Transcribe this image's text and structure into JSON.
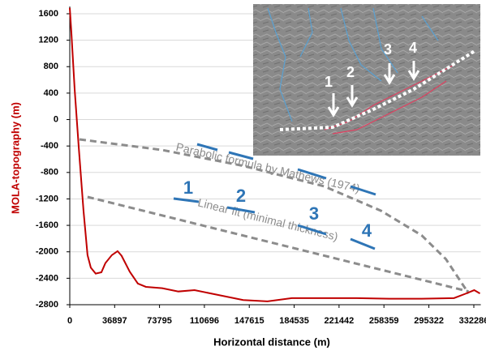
{
  "chart_data": {
    "type": "line",
    "y_label": "MOLA-topography (m)",
    "x_label": "Horizontal distance (m)",
    "x": [
      0,
      1300,
      4000,
      7300,
      11300,
      14600,
      17300,
      21300,
      26000,
      29300,
      34600,
      39300,
      42600,
      49300,
      56000,
      62600,
      76000,
      89300,
      102600,
      116000,
      142600,
      162600,
      182600,
      209300,
      236000,
      262600,
      289300,
      316000,
      326000,
      332600,
      337300
    ],
    "series": [
      {
        "color": "#c00000",
        "values": [
          1690,
          1320,
          460,
          -400,
          -1380,
          -2050,
          -2240,
          -2330,
          -2310,
          -2170,
          -2050,
          -1990,
          -2060,
          -2300,
          -2480,
          -2530,
          -2550,
          -2600,
          -2580,
          -2630,
          -2730,
          -2750,
          -2700,
          -2700,
          -2700,
          -2710,
          -2710,
          -2700,
          -2630,
          -2580,
          -2630
        ]
      }
    ],
    "overlays": [
      {
        "label": "Parabolic formula by Mathews (1974)",
        "color": "#8c8c8c",
        "x": [
          8000,
          76000,
          142600,
          209300,
          256000,
          289300,
          309300,
          322600,
          328000
        ],
        "values": [
          -300,
          -460,
          -700,
          -1010,
          -1380,
          -1750,
          -2110,
          -2480,
          -2630
        ]
      },
      {
        "label": "Linear fit (minimal thickness)",
        "color": "#8c8c8c",
        "x": [
          14600,
          328000
        ],
        "values": [
          -1170,
          -2600
        ]
      }
    ],
    "annotations": [
      "1",
      "2",
      "3",
      "4"
    ],
    "annotation_color": "#2e75b6",
    "xlim": [
      0,
      338000
    ],
    "ylim": [
      -2800,
      1710
    ],
    "xticks": [
      0,
      36897,
      73795,
      110696,
      147615,
      184535,
      221442,
      258359,
      295322,
      332286
    ],
    "yticks": [
      1600,
      1200,
      800,
      400,
      0,
      -400,
      -800,
      -1200,
      -1600,
      -2000,
      -2400,
      -2800
    ],
    "grid": true
  },
  "inset": {
    "labels": [
      "1",
      "2",
      "3",
      "4"
    ]
  }
}
